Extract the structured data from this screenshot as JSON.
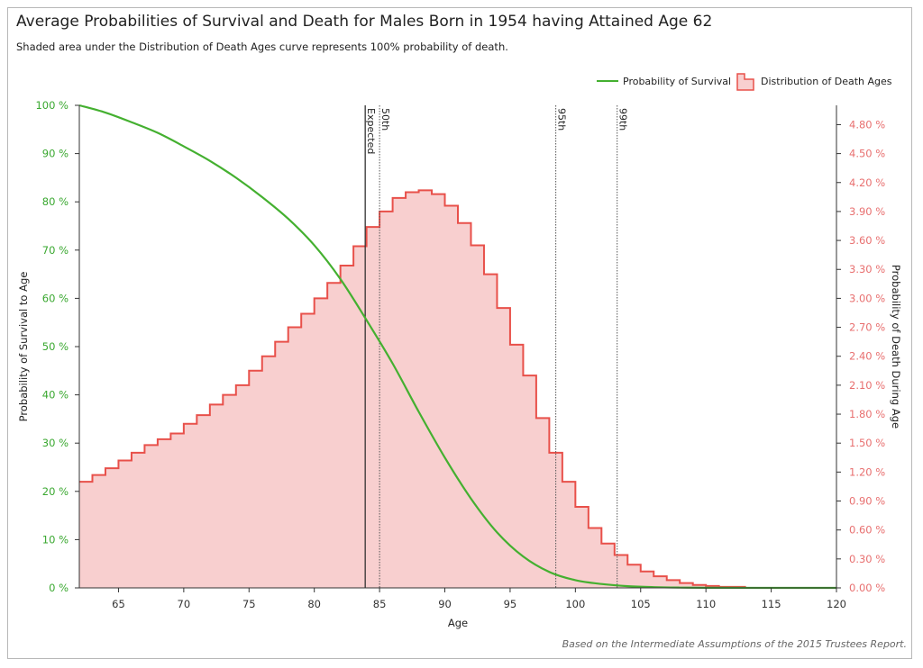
{
  "title": "Average Probabilities of Survival and Death for Males Born in 1954 having Attained Age 62",
  "subtitle": "Shaded area under the Distribution of Death Ages curve represents 100% probability of death.",
  "footnote": "Based on the Intermediate Assumptions of the 2015 Trustees Report.",
  "colors": {
    "survival": "#44b030",
    "death_line": "#e8504a",
    "death_fill": "#f8cfcf",
    "left_ticks": "#3aa830",
    "right_ticks": "#e87070"
  },
  "legend": [
    {
      "label": "Probability of Survival",
      "type": "line"
    },
    {
      "label": "Distribution of Death Ages",
      "type": "area"
    }
  ],
  "chart_data": {
    "type": "line",
    "xlabel": "Age",
    "ylabel_left": "Probability of Survival to Age",
    "ylabel_right": "Probability of Death During Age",
    "xlim": [
      62,
      120
    ],
    "x_ticks": [
      65,
      70,
      75,
      80,
      85,
      90,
      95,
      100,
      105,
      110,
      115,
      120
    ],
    "ylim_left": [
      0,
      100
    ],
    "y_ticks_left": [
      "0 %",
      "10 %",
      "20 %",
      "30 %",
      "40 %",
      "50 %",
      "60 %",
      "70 %",
      "80 %",
      "90 %",
      "100 %"
    ],
    "ylim_right": [
      0,
      5.0
    ],
    "y_ticks_right": [
      "0.00 %",
      "0.30 %",
      "0.60 %",
      "0.90 %",
      "1.20 %",
      "1.50 %",
      "1.80 %",
      "2.10 %",
      "2.40 %",
      "2.70 %",
      "3.00 %",
      "3.30 %",
      "3.60 %",
      "3.90 %",
      "4.20 %",
      "4.50 %",
      "4.80 %"
    ],
    "y_tick_values_right": [
      0,
      0.3,
      0.6,
      0.9,
      1.2,
      1.5,
      1.8,
      2.1,
      2.4,
      2.7,
      3.0,
      3.3,
      3.6,
      3.9,
      4.2,
      4.5,
      4.8
    ],
    "series": [
      {
        "name": "Probability of Survival",
        "axis": "left",
        "x": [
          62,
          64,
          66,
          68,
          70,
          72,
          74,
          76,
          78,
          80,
          82,
          84,
          86,
          88,
          90,
          92,
          94,
          96,
          98,
          100,
          102,
          104,
          106,
          108,
          110,
          114,
          120
        ],
        "y": [
          100,
          98.5,
          96.5,
          94.3,
          91.5,
          88.5,
          85.0,
          81.0,
          76.5,
          71.0,
          64.0,
          55.5,
          46.5,
          36.5,
          27.0,
          18.5,
          11.5,
          6.5,
          3.3,
          1.6,
          0.8,
          0.35,
          0.15,
          0.06,
          0.02,
          0.0,
          0.0
        ]
      },
      {
        "name": "Distribution of Death Ages",
        "axis": "right",
        "step_start": 62,
        "values": [
          1.1,
          1.17,
          1.24,
          1.32,
          1.4,
          1.48,
          1.54,
          1.6,
          1.7,
          1.79,
          1.9,
          2.0,
          2.1,
          2.25,
          2.4,
          2.55,
          2.7,
          2.84,
          3.0,
          3.16,
          3.34,
          3.54,
          3.74,
          3.9,
          4.04,
          4.1,
          4.12,
          4.08,
          3.96,
          3.78,
          3.55,
          3.25,
          2.9,
          2.52,
          2.2,
          1.76,
          1.4,
          1.1,
          0.84,
          0.62,
          0.46,
          0.34,
          0.24,
          0.17,
          0.12,
          0.08,
          0.05,
          0.03,
          0.02,
          0.01,
          0.01,
          0.0,
          0.0,
          0.0,
          0.0,
          0.0,
          0.0,
          0.0
        ]
      }
    ],
    "markers": [
      {
        "label": "Expected",
        "x": 83.9,
        "style": "solid"
      },
      {
        "label": "50th",
        "x": 85.0,
        "style": "dotted"
      },
      {
        "label": "95th",
        "x": 98.5,
        "style": "dotted"
      },
      {
        "label": "99th",
        "x": 103.2,
        "style": "dotted"
      }
    ]
  }
}
